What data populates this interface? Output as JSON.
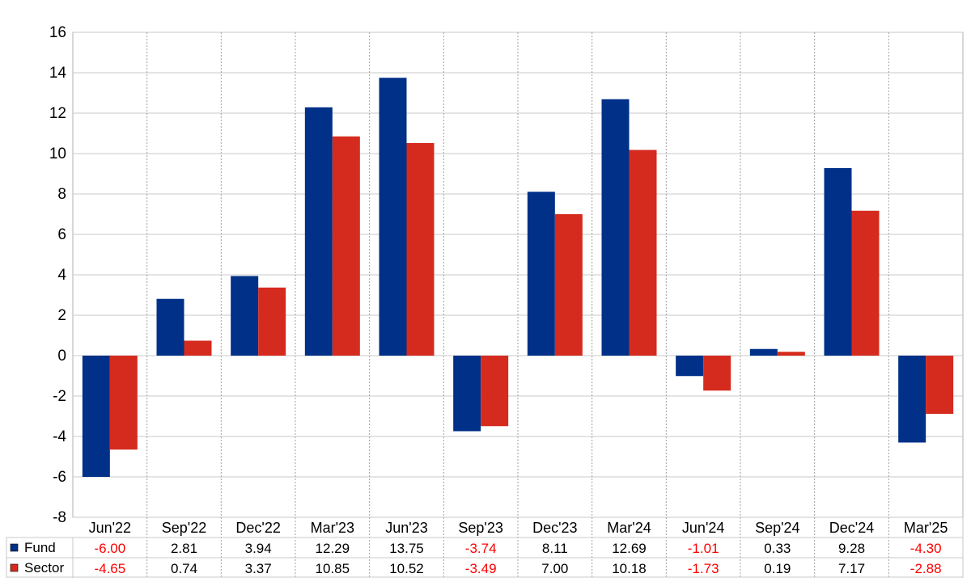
{
  "chart_data": {
    "type": "bar",
    "title": "",
    "xlabel": "",
    "ylabel": "",
    "categories": [
      "Jun'22",
      "Sep'22",
      "Dec'22",
      "Mar'23",
      "Jun'23",
      "Sep'23",
      "Dec'23",
      "Mar'24",
      "Jun'24",
      "Sep'24",
      "Dec'24",
      "Mar'25"
    ],
    "series": [
      {
        "name": "Fund",
        "color": "#003087",
        "values": [
          -6.0,
          2.81,
          3.94,
          12.29,
          13.75,
          -3.74,
          8.11,
          12.69,
          -1.01,
          0.33,
          9.28,
          -4.3
        ],
        "labels": [
          "-6.00",
          "2.81",
          "3.94",
          "12.29",
          "13.75",
          "-3.74",
          "8.11",
          "12.69",
          "-1.01",
          "0.33",
          "9.28",
          "-4.30"
        ]
      },
      {
        "name": "Sector",
        "color": "#d52b1e",
        "values": [
          -4.65,
          0.74,
          3.37,
          10.85,
          10.52,
          -3.49,
          7.0,
          10.18,
          -1.73,
          0.19,
          7.17,
          -2.88
        ],
        "labels": [
          "-4.65",
          "0.74",
          "3.37",
          "10.85",
          "10.52",
          "-3.49",
          "7.00",
          "10.18",
          "-1.73",
          "0.19",
          "7.17",
          "-2.88"
        ]
      }
    ],
    "ylim": [
      -8,
      16
    ],
    "yticks": [
      "-8",
      "-6",
      "-4",
      "-2",
      "0",
      "2",
      "4",
      "6",
      "8",
      "10",
      "12",
      "14",
      "16"
    ],
    "grid": true,
    "legend": "bottom-table",
    "negative_label_color": "#ff0000",
    "positive_label_color": "#000000"
  }
}
